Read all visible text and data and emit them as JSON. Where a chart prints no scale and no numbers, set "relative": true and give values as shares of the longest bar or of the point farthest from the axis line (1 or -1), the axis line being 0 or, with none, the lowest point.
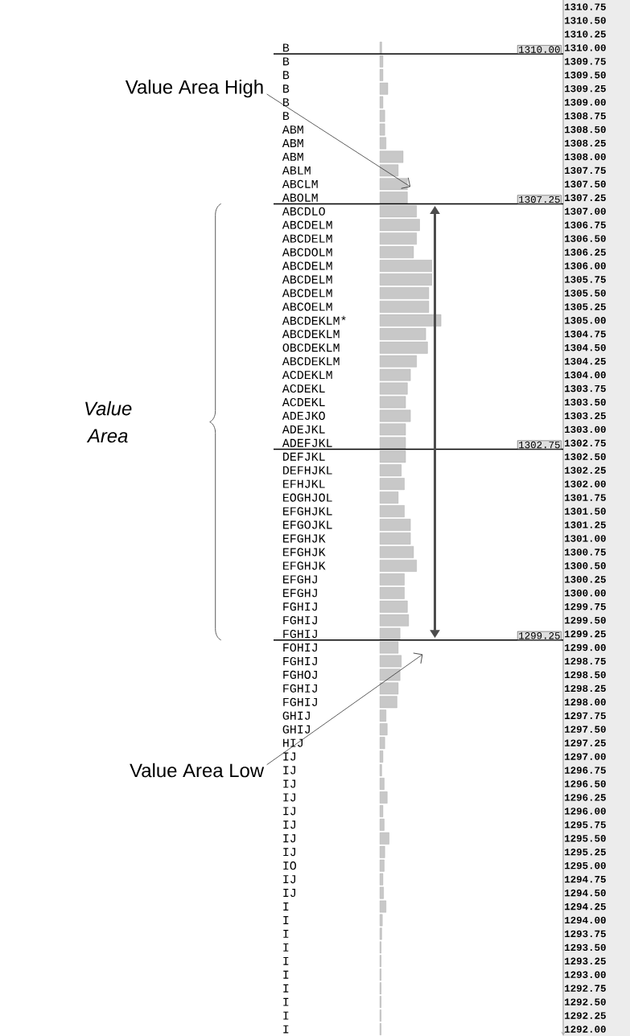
{
  "chart_data": {
    "type": "bar",
    "orientation": "horizontal",
    "relative": true,
    "color": "#c8c8c8",
    "categories": [
      "1310.75",
      "1310.50",
      "1310.25",
      "1310.00",
      "1309.75",
      "1309.50",
      "1309.25",
      "1309.00",
      "1308.75",
      "1308.50",
      "1308.25",
      "1308.00",
      "1307.75",
      "1307.50",
      "1307.25",
      "1307.00",
      "1306.75",
      "1306.50",
      "1306.25",
      "1306.00",
      "1305.75",
      "1305.50",
      "1305.25",
      "1305.00",
      "1304.75",
      "1304.50",
      "1304.25",
      "1304.00",
      "1303.75",
      "1303.50",
      "1303.25",
      "1303.00",
      "1302.75",
      "1302.50",
      "1302.25",
      "1302.00",
      "1301.75",
      "1301.50",
      "1301.25",
      "1301.00",
      "1300.75",
      "1300.50",
      "1300.25",
      "1300.00",
      "1299.75",
      "1299.50",
      "1299.25",
      "1299.00",
      "1298.75",
      "1298.50",
      "1298.25",
      "1298.00",
      "1297.75",
      "1297.50",
      "1297.25",
      "1297.00",
      "1296.75",
      "1296.50",
      "1296.25",
      "1296.00",
      "1295.75",
      "1295.50",
      "1295.25",
      "1295.00",
      "1294.75",
      "1294.50",
      "1294.25",
      "1294.00",
      "1293.75",
      "1293.50",
      "1293.25",
      "1293.00",
      "1292.75",
      "1292.50",
      "1292.25",
      "1292.00"
    ],
    "values": [
      null,
      null,
      null,
      0.03,
      0.05,
      0.05,
      0.13,
      0.05,
      0.08,
      0.08,
      0.1,
      0.38,
      0.3,
      0.45,
      0.45,
      0.6,
      0.65,
      0.6,
      0.55,
      0.85,
      0.85,
      0.8,
      0.8,
      1,
      0.75,
      0.78,
      0.6,
      0.5,
      0.45,
      0.42,
      0.5,
      0.42,
      0.42,
      0.42,
      0.35,
      0.4,
      0.3,
      0.4,
      0.5,
      0.5,
      0.55,
      0.6,
      0.4,
      0.4,
      0.45,
      0.47,
      0.33,
      0.3,
      0.35,
      0.33,
      0.3,
      0.28,
      0.1,
      0.12,
      0.08,
      0.05,
      0.03,
      0.07,
      0.12,
      0.05,
      0.07,
      0.15,
      0.08,
      0.07,
      0.05,
      0.06,
      0.1,
      0.04,
      0.03,
      0.02,
      0.02,
      0.02,
      0.02,
      0.02,
      0.02,
      0.02
    ],
    "ref_lines": [
      {
        "axis": "y",
        "value": "1310.00",
        "label": "1310.00"
      },
      {
        "axis": "y",
        "value": "1307.25",
        "label": "1307.25"
      },
      {
        "axis": "y",
        "value": "1302.75",
        "label": "1302.75"
      },
      {
        "axis": "y",
        "value": "1299.25",
        "label": "1299.25"
      }
    ],
    "annotations": [
      "Value Area High",
      "Value Area Low",
      "Value Area",
      "B",
      "B",
      "B",
      "B",
      "B",
      "B",
      "ABM",
      "ABM",
      "ABM",
      "ABLM",
      "ABCLM",
      "ABOLM",
      "ABCDLO",
      "ABCDELM",
      "ABCDELM",
      "ABCDOLM",
      "ABCDELM",
      "ABCDELM",
      "ABCDELM",
      "ABCOELM",
      "ABCDEKLM*",
      "ABCDEKLM",
      "OBCDEKLM",
      "ABCDEKLM",
      "ACDEKLM",
      "ACDEKL",
      "ACDEKL",
      "ADEJKO",
      "ADEJKL",
      "ADEFJKL",
      "DEFJKL",
      "DEFHJKL",
      "EFHJKL",
      "EOGHJOL",
      "EFGHJKL",
      "EFGOJKL",
      "EFGHJK",
      "EFGHJK",
      "EFGHJK",
      "EFGHJ",
      "EFGHJ",
      "FGHIJ",
      "FGHIJ",
      "FGHIJ",
      "FOHIJ",
      "FGHIJ",
      "FGHOJ",
      "FGHIJ",
      "FGHIJ",
      "GHIJ",
      "GHIJ",
      "HIJ",
      "IJ",
      "IJ",
      "IJ",
      "IJ",
      "IJ",
      "IJ",
      "IJ",
      "IJ",
      "IO",
      "IJ",
      "IJ",
      "I",
      "I",
      "I",
      "I",
      "I",
      "I",
      "I",
      "I",
      "I",
      "I"
    ]
  }
}
